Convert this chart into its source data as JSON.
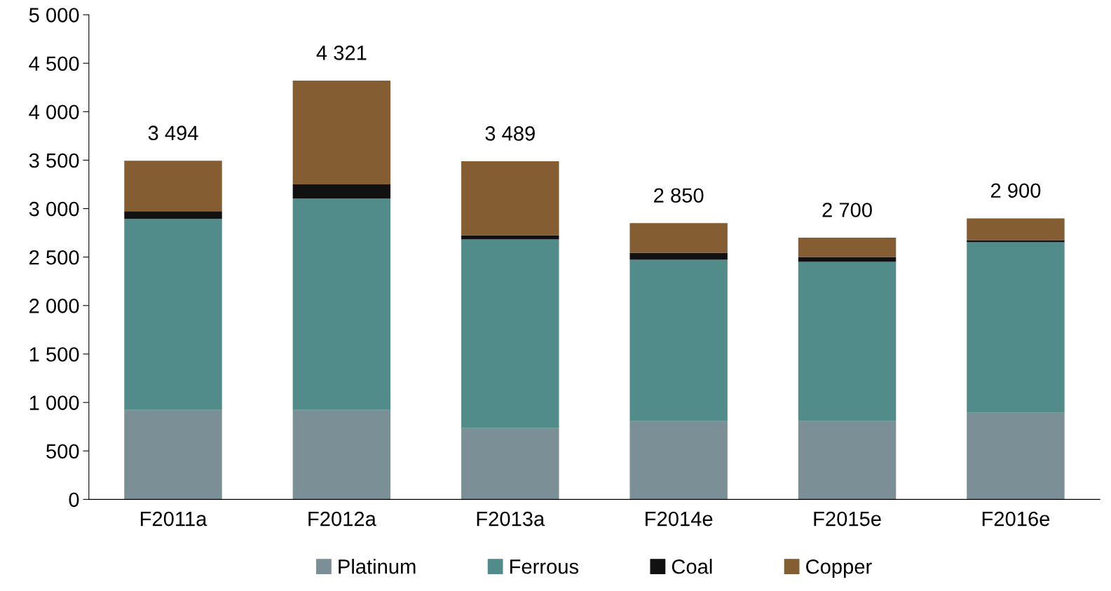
{
  "chart_data": {
    "type": "bar",
    "stacked": true,
    "categories": [
      "F2011a",
      "F2012a",
      "F2013a",
      "F2014e",
      "F2015e",
      "F2016e"
    ],
    "series": [
      {
        "name": "Platinum",
        "color": "#7a8f96",
        "values": [
          923,
          923,
          734,
          807,
          807,
          894
        ]
      },
      {
        "name": "Ferrous",
        "color": "#518c8a",
        "values": [
          1971,
          2181,
          1949,
          1665,
          1643,
          1760
        ]
      },
      {
        "name": "Coal",
        "color": "#111111",
        "values": [
          80,
          146,
          43,
          73,
          51,
          21
        ]
      },
      {
        "name": "Copper",
        "color": "#855d32",
        "values": [
          520,
          1071,
          763,
          305,
          199,
          225
        ]
      }
    ],
    "totals": [
      "3 494",
      "4 321",
      "3 489",
      "2 850",
      "2 700",
      "2 900"
    ],
    "ylim": [
      0,
      5000
    ],
    "yticks": [
      0,
      500,
      {
        "value": 1000,
        "label": "1 000"
      },
      {
        "value": 1500,
        "label": "1 500"
      },
      {
        "value": 2000,
        "label": "2 000"
      },
      {
        "value": 2500,
        "label": "2 500"
      },
      {
        "value": 3000,
        "label": "3 000"
      },
      {
        "value": 3500,
        "label": "3 500"
      },
      {
        "value": 4000,
        "label": "4 000"
      },
      {
        "value": 4500,
        "label": "4 500"
      },
      {
        "value": 5000,
        "label": "5 000"
      }
    ],
    "grid": false,
    "legend": "bottom"
  }
}
